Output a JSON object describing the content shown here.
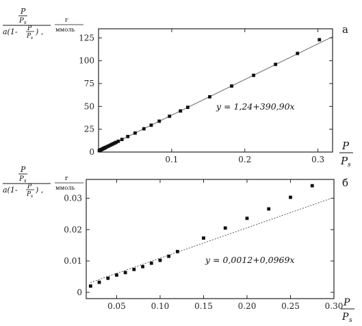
{
  "chart_data": [
    {
      "type": "scatter",
      "panel_label": "а",
      "y_label": {
        "num_top": "P",
        "num_bottom": "P",
        "num_sub": "s",
        "den_a": "a(1-",
        "den_frac_top": "P",
        "den_frac_bottom": "P",
        "den_frac_sub": "s",
        "den_b": ")",
        "unit_top": "г",
        "unit_bottom": "ммоль"
      },
      "x_label": {
        "top": "P",
        "bottom": "P",
        "bottom_sub": "s"
      },
      "xlim": [
        0,
        0.32
      ],
      "ylim": [
        0,
        135
      ],
      "x_ticks": [
        0.1,
        0.2,
        0.3
      ],
      "x_tick_labels": [
        "0.1",
        "0.2",
        "0.3"
      ],
      "y_ticks": [
        0,
        25,
        50,
        75,
        100,
        125
      ],
      "y_tick_labels": [
        "0",
        "25",
        "50",
        "75",
        "100",
        "125"
      ],
      "equation": "y = 1,24+390,90x",
      "fit": {
        "intercept": 1.24,
        "slope": 390.9
      },
      "points": [
        [
          0.001,
          1.6
        ],
        [
          0.002,
          2.0
        ],
        [
          0.003,
          2.4
        ],
        [
          0.004,
          2.8
        ],
        [
          0.005,
          3.2
        ],
        [
          0.006,
          3.6
        ],
        [
          0.007,
          4.0
        ],
        [
          0.008,
          4.4
        ],
        [
          0.009,
          4.8
        ],
        [
          0.01,
          5.2
        ],
        [
          0.012,
          6.0
        ],
        [
          0.014,
          6.7
        ],
        [
          0.016,
          7.5
        ],
        [
          0.018,
          8.3
        ],
        [
          0.02,
          9.1
        ],
        [
          0.022,
          9.8
        ],
        [
          0.024,
          10.6
        ],
        [
          0.027,
          11.8
        ],
        [
          0.032,
          13.8
        ],
        [
          0.04,
          17.0
        ],
        [
          0.05,
          20.8
        ],
        [
          0.062,
          25.5
        ],
        [
          0.072,
          29.4
        ],
        [
          0.083,
          33.8
        ],
        [
          0.097,
          39.2
        ],
        [
          0.112,
          45.0
        ],
        [
          0.122,
          49.0
        ],
        [
          0.152,
          60.5
        ],
        [
          0.182,
          72.3
        ],
        [
          0.212,
          84.0
        ],
        [
          0.242,
          96.0
        ],
        [
          0.272,
          108.0
        ],
        [
          0.302,
          123.0
        ]
      ]
    },
    {
      "type": "scatter",
      "panel_label": "б",
      "y_label": {
        "num_top": "P",
        "num_bottom": "P",
        "num_sub": "s",
        "den_a": "a(1-",
        "den_frac_top": "P",
        "den_frac_bottom": "P",
        "den_frac_sub": "s",
        "den_b": ")",
        "unit_top": "г",
        "unit_bottom": "ммоль"
      },
      "x_label": {
        "top": "P",
        "bottom": "P",
        "bottom_sub": "s"
      },
      "xlim": [
        0.015,
        0.3
      ],
      "ylim": [
        -0.002,
        0.036
      ],
      "x_ticks": [
        0.05,
        0.1,
        0.15,
        0.2,
        0.25,
        0.3
      ],
      "x_tick_labels": [
        "0.05",
        "0.10",
        "0.15",
        "0.20",
        "0.25",
        "0.30"
      ],
      "y_ticks": [
        0,
        0.01,
        0.02,
        0.03
      ],
      "y_tick_labels": [
        "0",
        "0.01",
        "0.02",
        "0.03"
      ],
      "equation": "y = 0,0012+0,0969x",
      "fit": {
        "intercept": 0.0012,
        "slope": 0.0969
      },
      "points": [
        [
          0.02,
          0.002
        ],
        [
          0.03,
          0.0032
        ],
        [
          0.04,
          0.0045
        ],
        [
          0.05,
          0.0055
        ],
        [
          0.06,
          0.0063
        ],
        [
          0.07,
          0.0073
        ],
        [
          0.08,
          0.0082
        ],
        [
          0.09,
          0.0093
        ],
        [
          0.1,
          0.0102
        ],
        [
          0.11,
          0.0115
        ],
        [
          0.12,
          0.013
        ],
        [
          0.15,
          0.0173
        ],
        [
          0.175,
          0.0205
        ],
        [
          0.2,
          0.0236
        ],
        [
          0.225,
          0.0266
        ],
        [
          0.25,
          0.0303
        ],
        [
          0.275,
          0.034
        ]
      ]
    }
  ]
}
